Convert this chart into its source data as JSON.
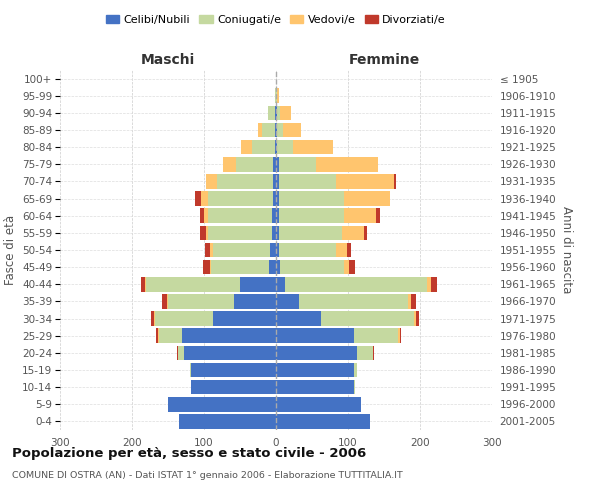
{
  "age_groups": [
    "0-4",
    "5-9",
    "10-14",
    "15-19",
    "20-24",
    "25-29",
    "30-34",
    "35-39",
    "40-44",
    "45-49",
    "50-54",
    "55-59",
    "60-64",
    "65-69",
    "70-74",
    "75-79",
    "80-84",
    "85-89",
    "90-94",
    "95-99",
    "100+"
  ],
  "birth_years": [
    "2001-2005",
    "1996-2000",
    "1991-1995",
    "1986-1990",
    "1981-1985",
    "1976-1980",
    "1971-1975",
    "1966-1970",
    "1961-1965",
    "1956-1960",
    "1951-1955",
    "1946-1950",
    "1941-1945",
    "1936-1940",
    "1931-1935",
    "1926-1930",
    "1921-1925",
    "1916-1920",
    "1911-1915",
    "1906-1910",
    "≤ 1905"
  ],
  "male": {
    "celibi": [
      135,
      150,
      118,
      118,
      128,
      130,
      88,
      58,
      50,
      10,
      8,
      6,
      5,
      4,
      4,
      4,
      2,
      2,
      1,
      0,
      0
    ],
    "coniugati": [
      0,
      0,
      0,
      2,
      8,
      32,
      80,
      92,
      130,
      80,
      80,
      88,
      90,
      90,
      78,
      52,
      32,
      18,
      10,
      2,
      0
    ],
    "vedovi": [
      0,
      0,
      0,
      0,
      0,
      2,
      2,
      1,
      2,
      2,
      3,
      3,
      5,
      10,
      15,
      18,
      15,
      5,
      0,
      0,
      0
    ],
    "divorziati": [
      0,
      0,
      0,
      0,
      1,
      2,
      3,
      8,
      5,
      10,
      8,
      8,
      5,
      8,
      0,
      0,
      0,
      0,
      0,
      0,
      0
    ]
  },
  "female": {
    "nubili": [
      130,
      118,
      108,
      108,
      113,
      108,
      62,
      32,
      12,
      6,
      4,
      4,
      4,
      4,
      4,
      4,
      2,
      2,
      1,
      0,
      0
    ],
    "coniugate": [
      0,
      0,
      2,
      5,
      22,
      62,
      130,
      152,
      198,
      88,
      80,
      88,
      90,
      90,
      80,
      52,
      22,
      8,
      5,
      2,
      0
    ],
    "vedove": [
      0,
      0,
      0,
      0,
      0,
      2,
      3,
      3,
      5,
      8,
      15,
      30,
      45,
      65,
      80,
      85,
      55,
      25,
      15,
      2,
      0
    ],
    "divorziate": [
      0,
      0,
      0,
      0,
      1,
      2,
      3,
      8,
      8,
      8,
      5,
      5,
      5,
      0,
      2,
      0,
      0,
      0,
      0,
      0,
      0
    ]
  },
  "colors": {
    "celibi_nubili": "#4472c4",
    "coniugati_e": "#c5d9a0",
    "vedovi_e": "#ffc56e",
    "divorziati_e": "#c0392b"
  },
  "xlim": 300,
  "title": "Popolazione per età, sesso e stato civile - 2006",
  "subtitle": "COMUNE DI OSTRA (AN) - Dati ISTAT 1° gennaio 2006 - Elaborazione TUTTITALIA.IT",
  "ylabel_left": "Fasce di età",
  "ylabel_right": "Anni di nascita",
  "xlabel_left": "Maschi",
  "xlabel_right": "Femmine",
  "legend_labels": [
    "Celibi/Nubili",
    "Coniugati/e",
    "Vedovi/e",
    "Divorziati/e"
  ]
}
